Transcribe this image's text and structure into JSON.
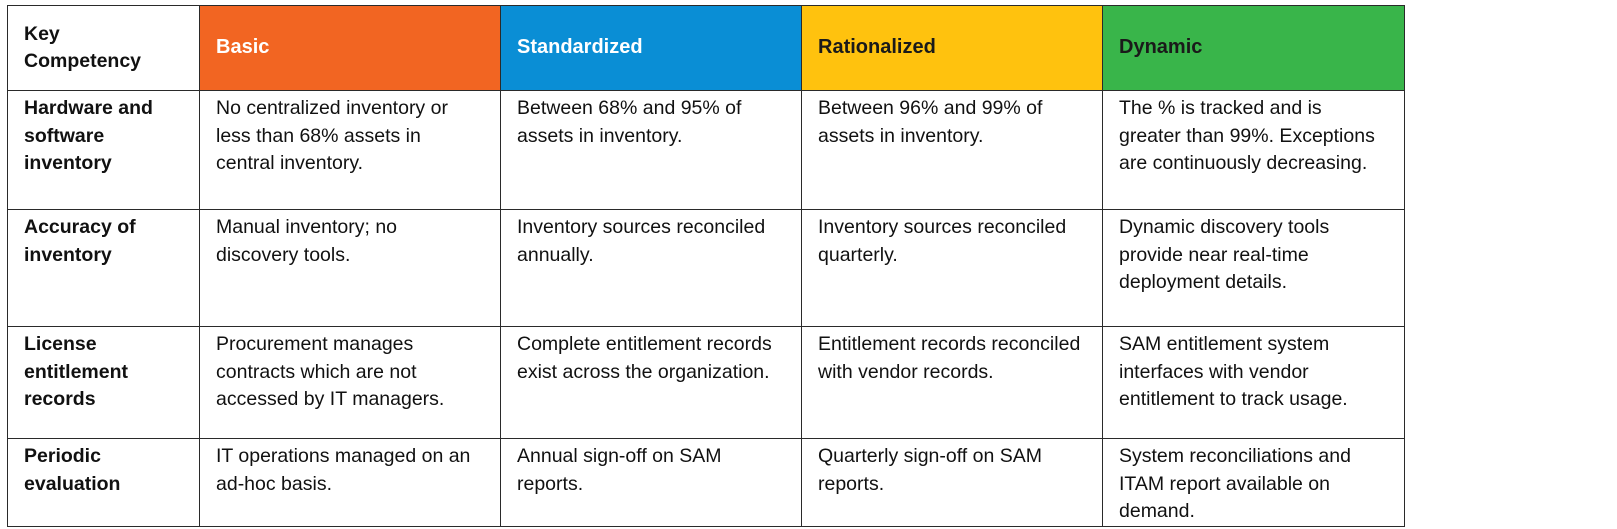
{
  "table": {
    "header": {
      "key": "Key\nCompetency",
      "levels": [
        {
          "label": "Basic",
          "color": "#f26522",
          "text_color": "#ffffff"
        },
        {
          "label": "Standardized",
          "color": "#0a8ed5",
          "text_color": "#ffffff"
        },
        {
          "label": "Rationalized",
          "color": "#ffc20e",
          "text_color": "#1a1a1a"
        },
        {
          "label": "Dynamic",
          "color": "#39b54a",
          "text_color": "#1a1a1a"
        }
      ]
    },
    "rows": [
      {
        "competency": "Hardware and software inventory",
        "cells": [
          "No centralized inventory or less than 68% assets in central inventory.",
          "Between 68% and 95% of assets in inventory.",
          "Between 96% and 99% of assets in inventory.",
          "The % is tracked and is greater than 99%.  Exceptions are continuously decreasing."
        ]
      },
      {
        "competency": "Accuracy of inventory",
        "cells": [
          "Manual inventory; no discovery tools.",
          "Inventory sources reconciled annually.",
          "Inventory sources reconciled quarterly.",
          "Dynamic discovery tools provide near real-time deployment details."
        ]
      },
      {
        "competency": "License entitlement records",
        "cells": [
          "Procurement manages contracts which are not accessed by IT managers.",
          "Complete entitlement records exist across the organization.",
          "Entitlement records reconciled with vendor records.",
          "SAM entitlement system interfaces with vendor entitlement to track usage."
        ]
      },
      {
        "competency": "Periodic evaluation",
        "cells": [
          "IT operations managed on an ad-hoc basis.",
          "Annual sign-off on SAM reports.",
          "Quarterly sign-off on SAM reports.",
          "System reconciliations and ITAM report available on demand."
        ]
      }
    ]
  }
}
